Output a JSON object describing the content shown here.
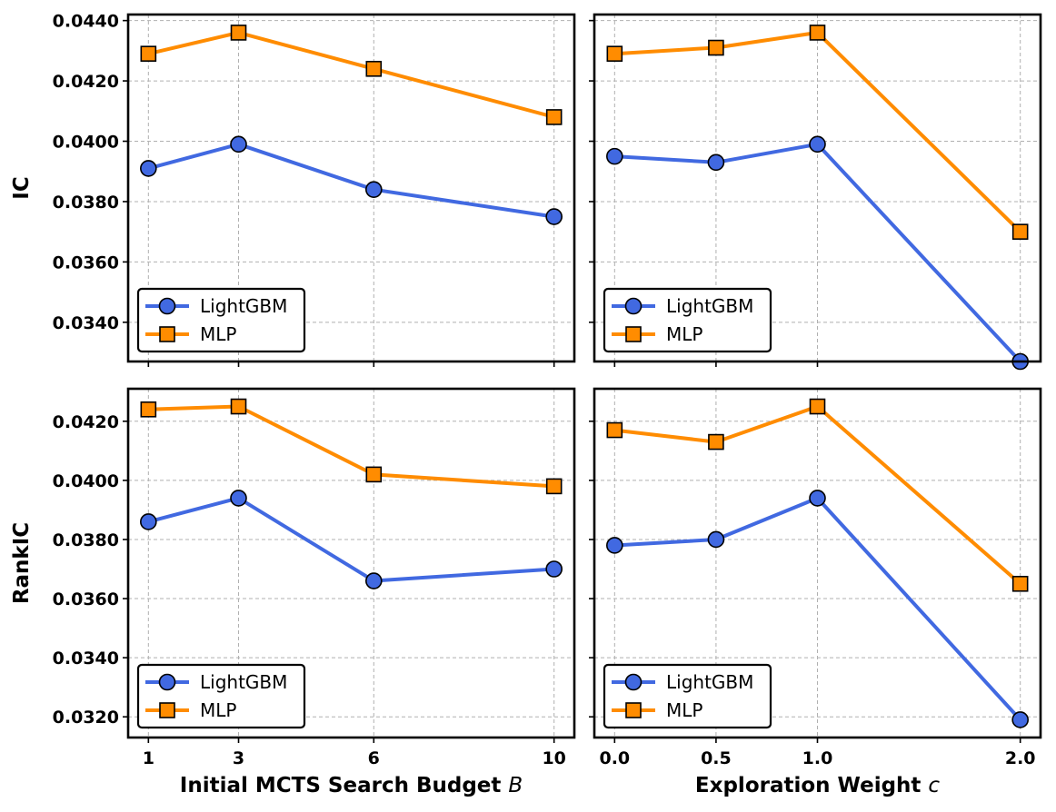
{
  "chart_data": [
    {
      "type": "line",
      "panel": "top-left",
      "ylabel": "IC",
      "xlabel": "",
      "x": [
        1,
        3,
        6,
        10
      ],
      "xticks": [
        1,
        3,
        6,
        10
      ],
      "xtick_labels": [
        "1",
        "3",
        "6",
        "10"
      ],
      "show_xtick_labels": false,
      "xlim": [
        0.55,
        10.45
      ],
      "ylim": [
        0.0327,
        0.0442
      ],
      "yticks": [
        0.034,
        0.036,
        0.038,
        0.04,
        0.042,
        0.044
      ],
      "ytick_labels": [
        "0.0340",
        "0.0360",
        "0.0380",
        "0.0400",
        "0.0420",
        "0.0440"
      ],
      "show_ytick_labels": true,
      "grid": true,
      "legend": "lower-left",
      "series": [
        {
          "name": "LightGBM",
          "color": "#4169e1",
          "marker": "circle",
          "values": [
            0.0391,
            0.0399,
            0.0384,
            0.0375
          ]
        },
        {
          "name": "MLP",
          "color": "#ff8c00",
          "marker": "square",
          "values": [
            0.0429,
            0.0436,
            0.0424,
            0.0408
          ]
        }
      ]
    },
    {
      "type": "line",
      "panel": "top-right",
      "ylabel": "",
      "xlabel": "",
      "x": [
        0.0,
        0.5,
        1.0,
        2.0
      ],
      "xticks": [
        0.0,
        0.5,
        1.0,
        2.0
      ],
      "xtick_labels": [
        "0.0",
        "0.5",
        "1.0",
        "2.0"
      ],
      "show_xtick_labels": false,
      "xlim": [
        -0.1,
        2.1
      ],
      "ylim": [
        0.0327,
        0.0442
      ],
      "yticks": [
        0.034,
        0.036,
        0.038,
        0.04,
        0.042,
        0.044
      ],
      "ytick_labels": [
        "0.0340",
        "0.0360",
        "0.0380",
        "0.0400",
        "0.0420",
        "0.0440"
      ],
      "show_ytick_labels": false,
      "grid": true,
      "legend": "lower-left",
      "series": [
        {
          "name": "LightGBM",
          "color": "#4169e1",
          "marker": "circle",
          "values": [
            0.0395,
            0.0393,
            0.0399,
            0.0327
          ]
        },
        {
          "name": "MLP",
          "color": "#ff8c00",
          "marker": "square",
          "values": [
            0.0429,
            0.0431,
            0.0436,
            0.037
          ]
        }
      ]
    },
    {
      "type": "line",
      "panel": "bottom-left",
      "ylabel": "RankIC",
      "xlabel": "Initial MCTS Search Budget ",
      "xlabel_var": "B",
      "x": [
        1,
        3,
        6,
        10
      ],
      "xticks": [
        1,
        3,
        6,
        10
      ],
      "xtick_labels": [
        "1",
        "3",
        "6",
        "10"
      ],
      "show_xtick_labels": true,
      "xlim": [
        0.55,
        10.45
      ],
      "ylim": [
        0.0313,
        0.0431
      ],
      "yticks": [
        0.032,
        0.034,
        0.036,
        0.038,
        0.04,
        0.042
      ],
      "ytick_labels": [
        "0.0320",
        "0.0340",
        "0.0360",
        "0.0380",
        "0.0400",
        "0.0420"
      ],
      "show_ytick_labels": true,
      "grid": true,
      "legend": "lower-left",
      "series": [
        {
          "name": "LightGBM",
          "color": "#4169e1",
          "marker": "circle",
          "values": [
            0.0386,
            0.0394,
            0.0366,
            0.037
          ]
        },
        {
          "name": "MLP",
          "color": "#ff8c00",
          "marker": "square",
          "values": [
            0.0424,
            0.0425,
            0.0402,
            0.0398
          ]
        }
      ]
    },
    {
      "type": "line",
      "panel": "bottom-right",
      "ylabel": "",
      "xlabel": "Exploration Weight ",
      "xlabel_var": "c",
      "x": [
        0.0,
        0.5,
        1.0,
        2.0
      ],
      "xticks": [
        0.0,
        0.5,
        1.0,
        2.0
      ],
      "xtick_labels": [
        "0.0",
        "0.5",
        "1.0",
        "2.0"
      ],
      "show_xtick_labels": true,
      "xlim": [
        -0.1,
        2.1
      ],
      "ylim": [
        0.0313,
        0.0431
      ],
      "yticks": [
        0.032,
        0.034,
        0.036,
        0.038,
        0.04,
        0.042
      ],
      "ytick_labels": [
        "0.0320",
        "0.0340",
        "0.0360",
        "0.0380",
        "0.0400",
        "0.0420"
      ],
      "show_ytick_labels": false,
      "grid": true,
      "legend": "lower-left",
      "series": [
        {
          "name": "LightGBM",
          "color": "#4169e1",
          "marker": "circle",
          "values": [
            0.0378,
            0.038,
            0.0394,
            0.0319
          ]
        },
        {
          "name": "MLP",
          "color": "#ff8c00",
          "marker": "square",
          "values": [
            0.0417,
            0.0413,
            0.0425,
            0.0365
          ]
        }
      ]
    }
  ]
}
